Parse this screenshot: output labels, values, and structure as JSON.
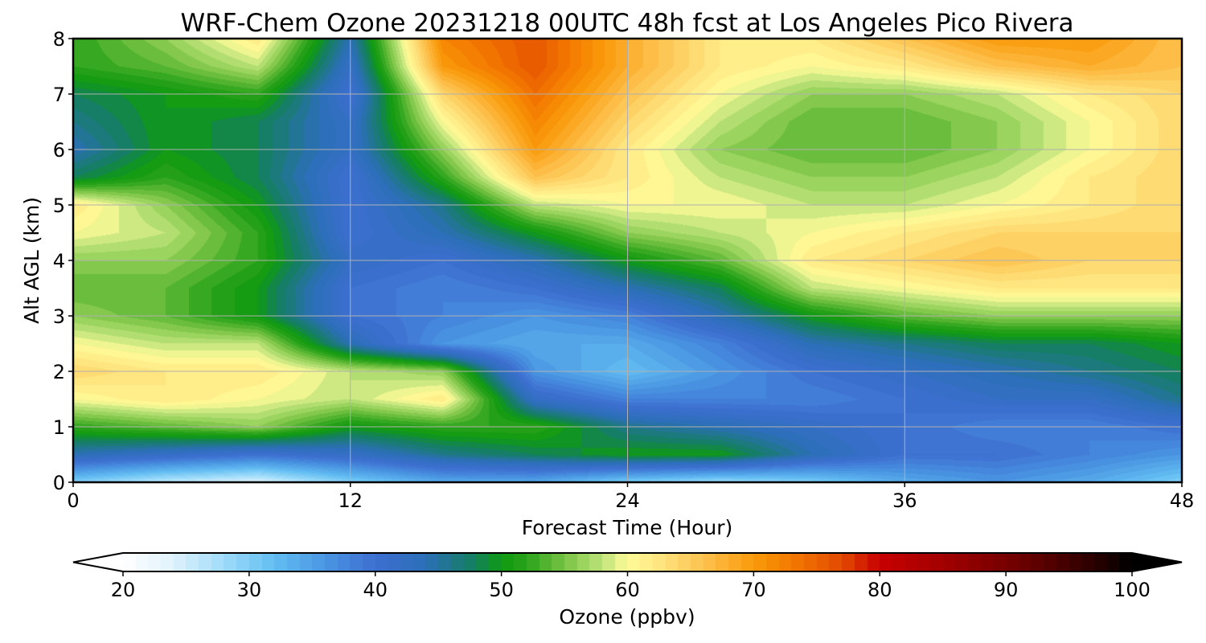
{
  "chart_data": {
    "type": "heatmap",
    "title": "WRF-Chem Ozone  20231218 00UTC 48h fcst at Los Angeles Pico Rivera",
    "xlabel": "Forecast Time (Hour)",
    "ylabel": "Alt AGL (km)",
    "xlim": [
      0,
      48
    ],
    "ylim": [
      0,
      8
    ],
    "x_ticks": [
      "0",
      "12",
      "24",
      "36",
      "48"
    ],
    "y_ticks": [
      "0",
      "1",
      "2",
      "3",
      "4",
      "5",
      "6",
      "7",
      "8"
    ],
    "grid": true,
    "x": [
      0,
      4,
      8,
      12,
      16,
      20,
      24,
      28,
      32,
      36,
      40,
      44,
      48
    ],
    "y": [
      0,
      0.5,
      1,
      1.5,
      2,
      2.5,
      3,
      3.5,
      4,
      4.5,
      5,
      5.5,
      6,
      6.5,
      7,
      7.5,
      8
    ],
    "z": [
      [
        30,
        26,
        24,
        30,
        34,
        34,
        30,
        28,
        30,
        34,
        36,
        34,
        30
      ],
      [
        44,
        42,
        40,
        42,
        46,
        48,
        50,
        50,
        44,
        40,
        40,
        38,
        36
      ],
      [
        52,
        54,
        56,
        50,
        52,
        52,
        46,
        44,
        42,
        40,
        38,
        38,
        40
      ],
      [
        60,
        62,
        60,
        58,
        62,
        42,
        38,
        38,
        38,
        40,
        42,
        42,
        46
      ],
      [
        64,
        62,
        62,
        58,
        56,
        36,
        32,
        36,
        40,
        42,
        44,
        46,
        48
      ],
      [
        60,
        58,
        58,
        44,
        36,
        34,
        34,
        38,
        44,
        46,
        48,
        48,
        50
      ],
      [
        56,
        54,
        50,
        40,
        38,
        36,
        38,
        44,
        50,
        54,
        56,
        56,
        56
      ],
      [
        54,
        54,
        50,
        40,
        38,
        40,
        44,
        48,
        58,
        60,
        62,
        62,
        62
      ],
      [
        56,
        56,
        52,
        42,
        40,
        44,
        50,
        54,
        62,
        64,
        66,
        64,
        64
      ],
      [
        60,
        58,
        52,
        40,
        44,
        50,
        56,
        58,
        60,
        62,
        64,
        64,
        64
      ],
      [
        62,
        56,
        50,
        40,
        46,
        58,
        60,
        60,
        58,
        58,
        60,
        62,
        64
      ],
      [
        48,
        52,
        48,
        40,
        52,
        66,
        62,
        58,
        56,
        56,
        58,
        62,
        64
      ],
      [
        44,
        50,
        48,
        42,
        56,
        70,
        62,
        56,
        54,
        54,
        56,
        60,
        64
      ],
      [
        46,
        50,
        48,
        42,
        60,
        72,
        64,
        58,
        54,
        54,
        56,
        60,
        64
      ],
      [
        48,
        50,
        52,
        40,
        64,
        74,
        66,
        60,
        56,
        56,
        58,
        62,
        64
      ],
      [
        52,
        54,
        58,
        42,
        70,
        76,
        68,
        62,
        60,
        62,
        66,
        68,
        66
      ],
      [
        52,
        56,
        62,
        44,
        72,
        76,
        68,
        62,
        62,
        66,
        70,
        70,
        66
      ]
    ],
    "colorbar": {
      "label": "Ozone  (ppbv)",
      "ticks": [
        "20",
        "30",
        "40",
        "50",
        "60",
        "70",
        "80",
        "90",
        "100"
      ],
      "min": 20,
      "max": 100,
      "extend": "both",
      "orientation": "horizontal",
      "colors": [
        {
          "v": 20,
          "c": "#ffffff"
        },
        {
          "v": 24,
          "c": "#dff2fc"
        },
        {
          "v": 28,
          "c": "#9fdcfa"
        },
        {
          "v": 32,
          "c": "#62bdf2"
        },
        {
          "v": 36,
          "c": "#4a96e2"
        },
        {
          "v": 40,
          "c": "#3d6fd1"
        },
        {
          "v": 44,
          "c": "#2c6fb8"
        },
        {
          "v": 48,
          "c": "#13805a"
        },
        {
          "v": 50,
          "c": "#0f9a10"
        },
        {
          "v": 52,
          "c": "#2aa21a"
        },
        {
          "v": 55,
          "c": "#78c444"
        },
        {
          "v": 58,
          "c": "#bde37a"
        },
        {
          "v": 60,
          "c": "#fffb99"
        },
        {
          "v": 63,
          "c": "#fee07a"
        },
        {
          "v": 66,
          "c": "#fdc24f"
        },
        {
          "v": 70,
          "c": "#f99a0a"
        },
        {
          "v": 73,
          "c": "#f47a00"
        },
        {
          "v": 77,
          "c": "#e24a00"
        },
        {
          "v": 80,
          "c": "#c80000"
        },
        {
          "v": 86,
          "c": "#9a0000"
        },
        {
          "v": 92,
          "c": "#640000"
        },
        {
          "v": 97,
          "c": "#2a0000"
        },
        {
          "v": 100,
          "c": "#000000"
        }
      ]
    }
  }
}
